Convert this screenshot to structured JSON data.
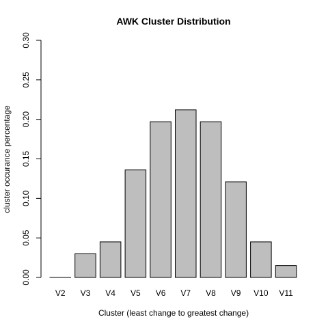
{
  "chart_data": {
    "type": "bar",
    "title": "AWK Cluster Distribution",
    "xlabel": "Cluster (least change to greatest change)",
    "ylabel": "cluster occurance percentage",
    "categories": [
      "V2",
      "V3",
      "V4",
      "V5",
      "V6",
      "V7",
      "V8",
      "V9",
      "V10",
      "V11"
    ],
    "values": [
      0.0,
      0.03,
      0.045,
      0.136,
      0.197,
      0.212,
      0.197,
      0.121,
      0.045,
      0.015
    ],
    "ylim": [
      0,
      0.3
    ],
    "yticks": [
      0.0,
      0.05,
      0.1,
      0.15,
      0.2,
      0.25,
      0.3
    ],
    "ytick_labels": [
      "0.00",
      "0.05",
      "0.10",
      "0.15",
      "0.20",
      "0.25",
      "0.30"
    ],
    "grid": false,
    "legend": "none",
    "colors": {
      "bar_fill": "#bebebe",
      "bar_stroke": "#000000",
      "axis": "#000000",
      "background": "#ffffff"
    }
  }
}
